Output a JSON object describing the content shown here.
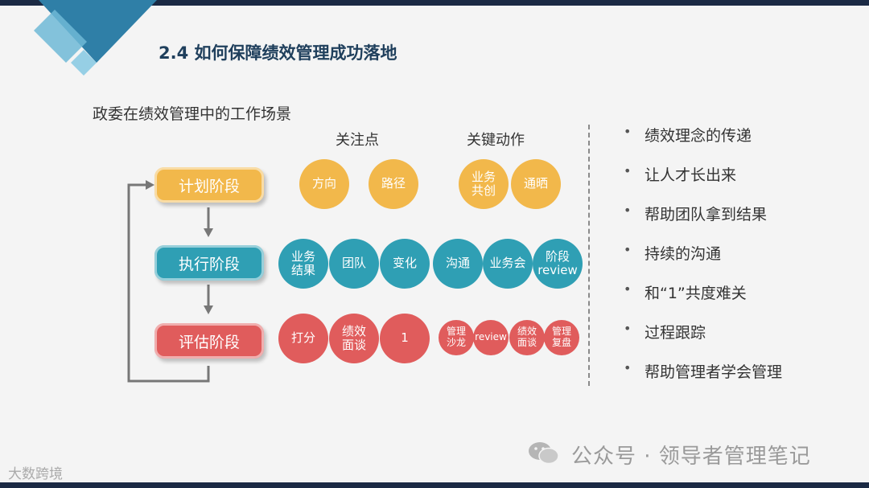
{
  "slide": {
    "title": "2.4 如何保障绩效管理成功落地",
    "subtitle": "政委在绩效管理中的工作场景",
    "col_focus": "关注点",
    "col_actions": "关键动作"
  },
  "stages": [
    {
      "label": "计划阶段",
      "color": "#f2b84b"
    },
    {
      "label": "执行阶段",
      "color": "#2f9fb4"
    },
    {
      "label": "评估阶段",
      "color": "#e05c5c"
    }
  ],
  "focus": {
    "plan": [
      "方向",
      "路径"
    ],
    "exec": [
      "业务\n结果",
      "团队",
      "变化"
    ],
    "eval": [
      "打分",
      "绩效\n面谈",
      "1"
    ]
  },
  "actions": {
    "plan": [
      "业务\n共创",
      "通晒"
    ],
    "exec": [
      "沟通",
      "业务会",
      "阶段\nreview"
    ],
    "eval": [
      "管理\n沙龙",
      "review",
      "绩效\n面谈",
      "管理\n复盘"
    ]
  },
  "bullets": [
    "绩效理念的传递",
    "让人才长出来",
    "帮助团队拿到结果",
    "持续的沟通",
    "和“1”共度难关",
    "过程跟踪",
    "帮助管理者学会管理"
  ],
  "bullet_symbol": "•",
  "watermark": {
    "text": "公众号 · 领导者管理笔记",
    "corner": "大数跨境"
  },
  "colors": {
    "plan": "#f2b84b",
    "exec": "#2f9fb4",
    "eval": "#e05c5c",
    "title": "#1f3f5c"
  }
}
